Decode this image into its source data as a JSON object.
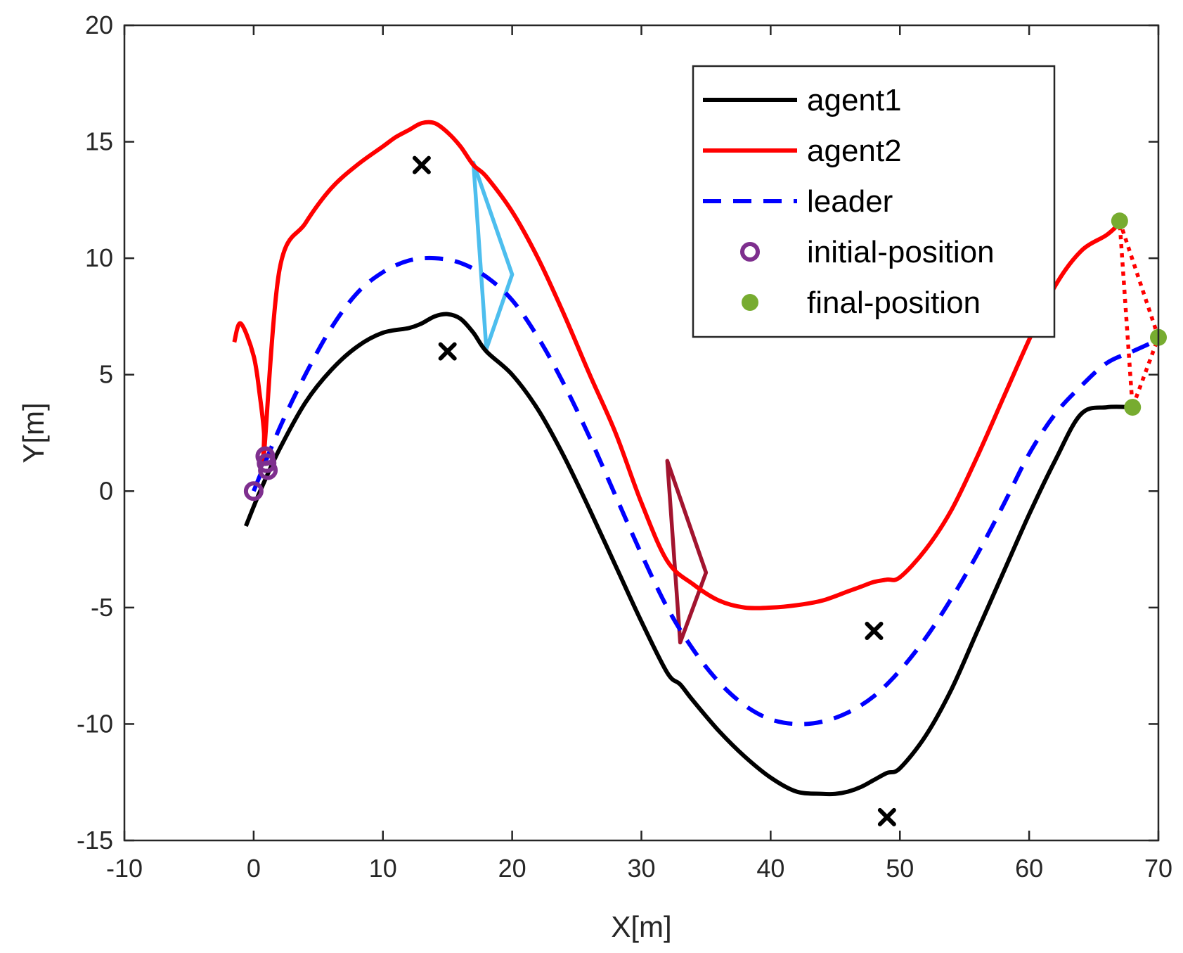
{
  "chart_data": {
    "type": "line",
    "title": "",
    "xlabel": "X[m]",
    "ylabel": "Y[m]",
    "xlim": [
      -10,
      70
    ],
    "ylim": [
      -15,
      20
    ],
    "xticks": [
      -10,
      0,
      10,
      20,
      30,
      40,
      50,
      60,
      70
    ],
    "yticks": [
      -15,
      -10,
      -5,
      0,
      5,
      10,
      15,
      20
    ],
    "grid": false,
    "legend_position": "top-right",
    "colors": {
      "agent1": "#000000",
      "agent2": "#ff0000",
      "leader": "#0000ff",
      "initial": "#7e2f8e",
      "final": "#77ac30",
      "formation_early": "#4dbeee",
      "formation_mid": "#a2142f",
      "formation_final": "#ff0000",
      "obstacle": "#000000",
      "axes": "#262626"
    },
    "series": [
      {
        "name": "agent1",
        "style": "solid",
        "x": [
          -0.6,
          0.5,
          2,
          4,
          6,
          8,
          10,
          12,
          13,
          14,
          15,
          16,
          17,
          18,
          20,
          22,
          24,
          26,
          28,
          30,
          32,
          33,
          34,
          36,
          38,
          40,
          42,
          44,
          45,
          46,
          47,
          48,
          49,
          50,
          52,
          54,
          56,
          58,
          60,
          62,
          64,
          66,
          68
        ],
        "y": [
          -1.5,
          0.0,
          1.8,
          3.8,
          5.2,
          6.2,
          6.8,
          7.0,
          7.2,
          7.5,
          7.6,
          7.4,
          6.8,
          6.0,
          5.0,
          3.5,
          1.5,
          -0.8,
          -3.2,
          -5.6,
          -7.8,
          -8.3,
          -9.0,
          -10.3,
          -11.4,
          -12.3,
          -12.9,
          -13.0,
          -13.0,
          -12.9,
          -12.7,
          -12.4,
          -12.1,
          -11.9,
          -10.5,
          -8.5,
          -6.0,
          -3.5,
          -1.0,
          1.3,
          3.3,
          3.6,
          3.6
        ]
      },
      {
        "name": "agent2",
        "style": "solid",
        "x": [
          -1.5,
          -1.0,
          0.0,
          0.5,
          0.8,
          0.8,
          2,
          4,
          6,
          8,
          10,
          11,
          12,
          13,
          14,
          15,
          16,
          17,
          18,
          20,
          22,
          24,
          26,
          28,
          30,
          32,
          34,
          36,
          38,
          40,
          42,
          44,
          46,
          47,
          48,
          49,
          50,
          52,
          54,
          56,
          58,
          60,
          62,
          64,
          66,
          67
        ],
        "y": [
          6.4,
          7.2,
          5.8,
          4.0,
          2.5,
          1.6,
          9.5,
          11.5,
          13.0,
          14.0,
          14.8,
          15.2,
          15.5,
          15.8,
          15.8,
          15.4,
          14.8,
          14.0,
          13.5,
          12.0,
          10.0,
          7.6,
          5.0,
          2.5,
          -0.5,
          -3.0,
          -4.0,
          -4.7,
          -5.0,
          -5.0,
          -4.9,
          -4.7,
          -4.3,
          -4.1,
          -3.9,
          -3.8,
          -3.7,
          -2.5,
          -0.8,
          1.5,
          4.0,
          6.5,
          8.8,
          10.3,
          11.0,
          11.5
        ]
      },
      {
        "name": "leader",
        "style": "dashed",
        "x": [
          0,
          2,
          4,
          6,
          8,
          10,
          12,
          14,
          16,
          18,
          20,
          22,
          24,
          26,
          28,
          30,
          32,
          34,
          36,
          38,
          40,
          42,
          44,
          46,
          48,
          50,
          52,
          54,
          56,
          58,
          60,
          62,
          64,
          66,
          68,
          70
        ],
        "y": [
          0.0,
          2.7,
          5.0,
          7.0,
          8.5,
          9.4,
          9.9,
          10.0,
          9.8,
          9.2,
          8.2,
          6.6,
          4.6,
          2.3,
          -0.2,
          -2.7,
          -5.0,
          -6.8,
          -8.2,
          -9.2,
          -9.8,
          -10.0,
          -9.9,
          -9.5,
          -8.8,
          -7.7,
          -6.3,
          -4.6,
          -2.7,
          -0.6,
          1.6,
          3.3,
          4.5,
          5.5,
          6.0,
          6.5
        ]
      }
    ],
    "initial_positions": {
      "name": "initial-position",
      "x": [
        0,
        0.9,
        1.1,
        1.0
      ],
      "y": [
        0,
        1.5,
        0.9,
        1.2
      ]
    },
    "final_positions": {
      "name": "final-position",
      "x": [
        67,
        68,
        70
      ],
      "y": [
        11.6,
        3.6,
        6.6
      ]
    },
    "formations": [
      {
        "label": "early",
        "style": "solid",
        "points": [
          [
            17,
            14.1
          ],
          [
            20,
            9.3
          ],
          [
            18,
            6.1
          ]
        ]
      },
      {
        "label": "mid",
        "style": "solid",
        "points": [
          [
            32,
            1.3
          ],
          [
            35,
            -3.5
          ],
          [
            33,
            -6.5
          ]
        ]
      },
      {
        "label": "final",
        "style": "dotted",
        "points": [
          [
            67,
            11.6
          ],
          [
            70,
            6.6
          ],
          [
            68,
            3.6
          ]
        ]
      }
    ],
    "obstacles": {
      "x": [
        13,
        15,
        48,
        49
      ],
      "y": [
        14,
        6,
        -6,
        -14
      ]
    },
    "legend": [
      "agent1",
      "agent2",
      "leader",
      "initial-position",
      "final-position"
    ]
  }
}
